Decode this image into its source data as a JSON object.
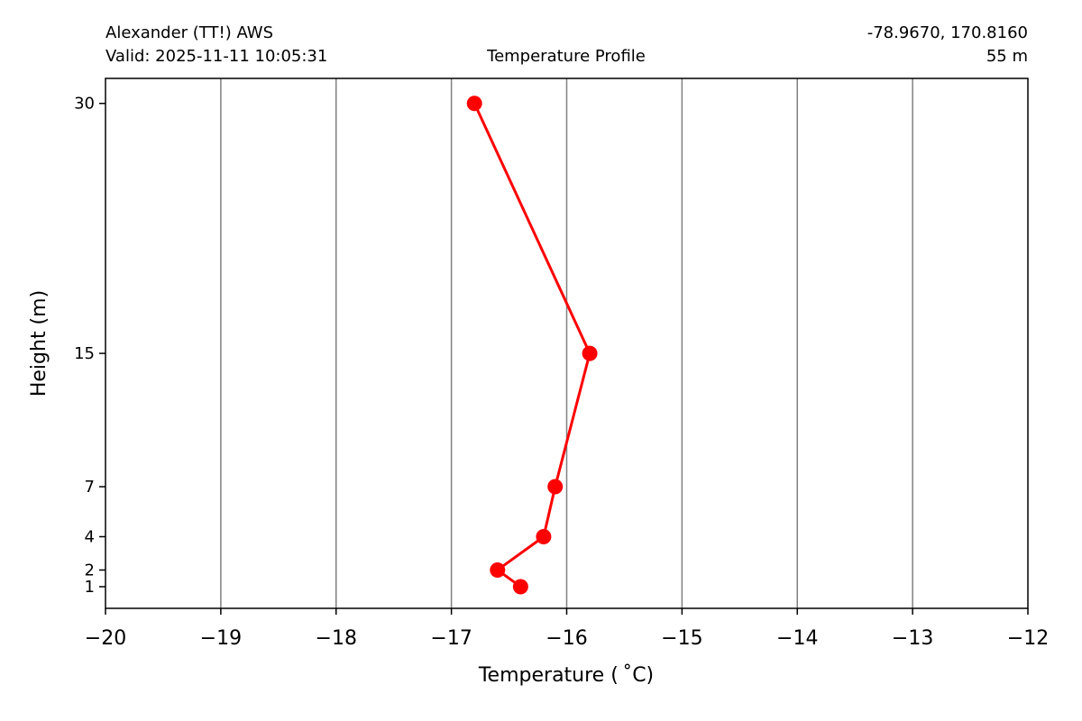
{
  "header": {
    "station": "Alexander (TT!) AWS",
    "valid": "Valid: 2025-11-11 10:05:31",
    "plot_name": "Temperature Profile",
    "coords": "-78.9670, 170.8160",
    "elevation": "55 m"
  },
  "chart_data": {
    "type": "line",
    "xlabel": "Temperature ($^\\circ$C)",
    "xlabel_display": "Temperature ( ˚C)",
    "ylabel": "Height (m)",
    "xlim": [
      -20,
      -12
    ],
    "ylim": [
      -0.3,
      31.5
    ],
    "xticks": [
      -20,
      -19,
      -18,
      -17,
      -16,
      -15,
      -14,
      -13,
      -12
    ],
    "xtick_labels": [
      "−20",
      "−19",
      "−18",
      "−17",
      "−16",
      "−15",
      "−14",
      "−13",
      "−12"
    ],
    "yticks": [
      1,
      2,
      4,
      7,
      15,
      30
    ],
    "ytick_labels": [
      "1",
      "2",
      "4",
      "7",
      "15",
      "30"
    ],
    "y_scale": "non-linear (sensor heights)",
    "grid": "vertical lines at x ticks",
    "series": [
      {
        "color": "#ff0000",
        "marker": "circle",
        "points": [
          {
            "height": 1,
            "temperature": -16.4
          },
          {
            "height": 2,
            "temperature": -16.6
          },
          {
            "height": 4,
            "temperature": -16.2
          },
          {
            "height": 7,
            "temperature": -16.1
          },
          {
            "height": 15,
            "temperature": -15.8
          },
          {
            "height": 30,
            "temperature": -16.8
          }
        ]
      }
    ]
  },
  "colors": {
    "series": "#ff0000",
    "grid": "#808080",
    "axes": "#000000"
  }
}
